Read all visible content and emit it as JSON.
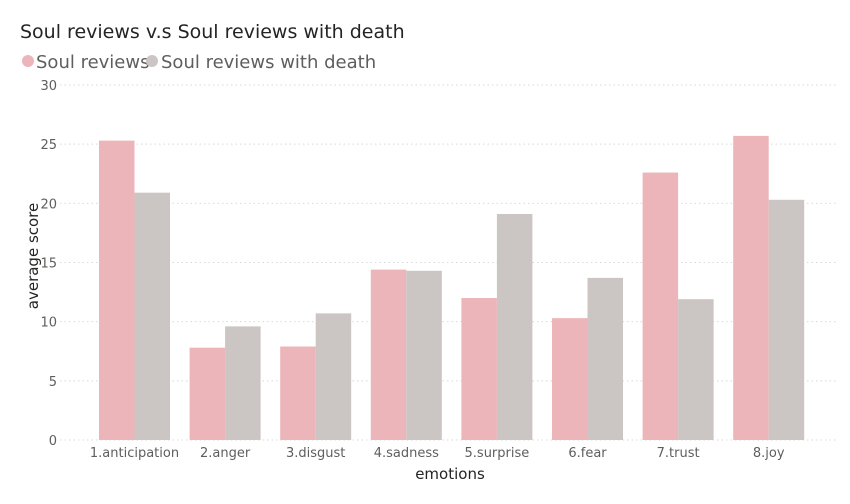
{
  "chart_data": {
    "type": "bar",
    "title": "Soul reviews v.s Soul reviews with death",
    "xlabel": "emotions",
    "ylabel": "average score",
    "categories": [
      "1.anticipation",
      "2.anger",
      "3.disgust",
      "4.sadness",
      "5.surprise",
      "6.fear",
      "7.trust",
      "8.joy"
    ],
    "series": [
      {
        "name": "Soul reviews",
        "color": "#ecb5b9",
        "values": [
          25.3,
          7.8,
          7.9,
          14.4,
          12.0,
          10.3,
          22.6,
          25.7
        ]
      },
      {
        "name": "Soul reviews with death",
        "color": "#cbc5c4",
        "values": [
          20.9,
          9.6,
          10.7,
          14.3,
          19.1,
          13.7,
          11.9,
          20.3
        ]
      }
    ],
    "ylim": [
      0,
      30
    ],
    "yticks": [
      0,
      5,
      10,
      15,
      20,
      25,
      30
    ],
    "grid": true,
    "legend_position": "top-left"
  }
}
